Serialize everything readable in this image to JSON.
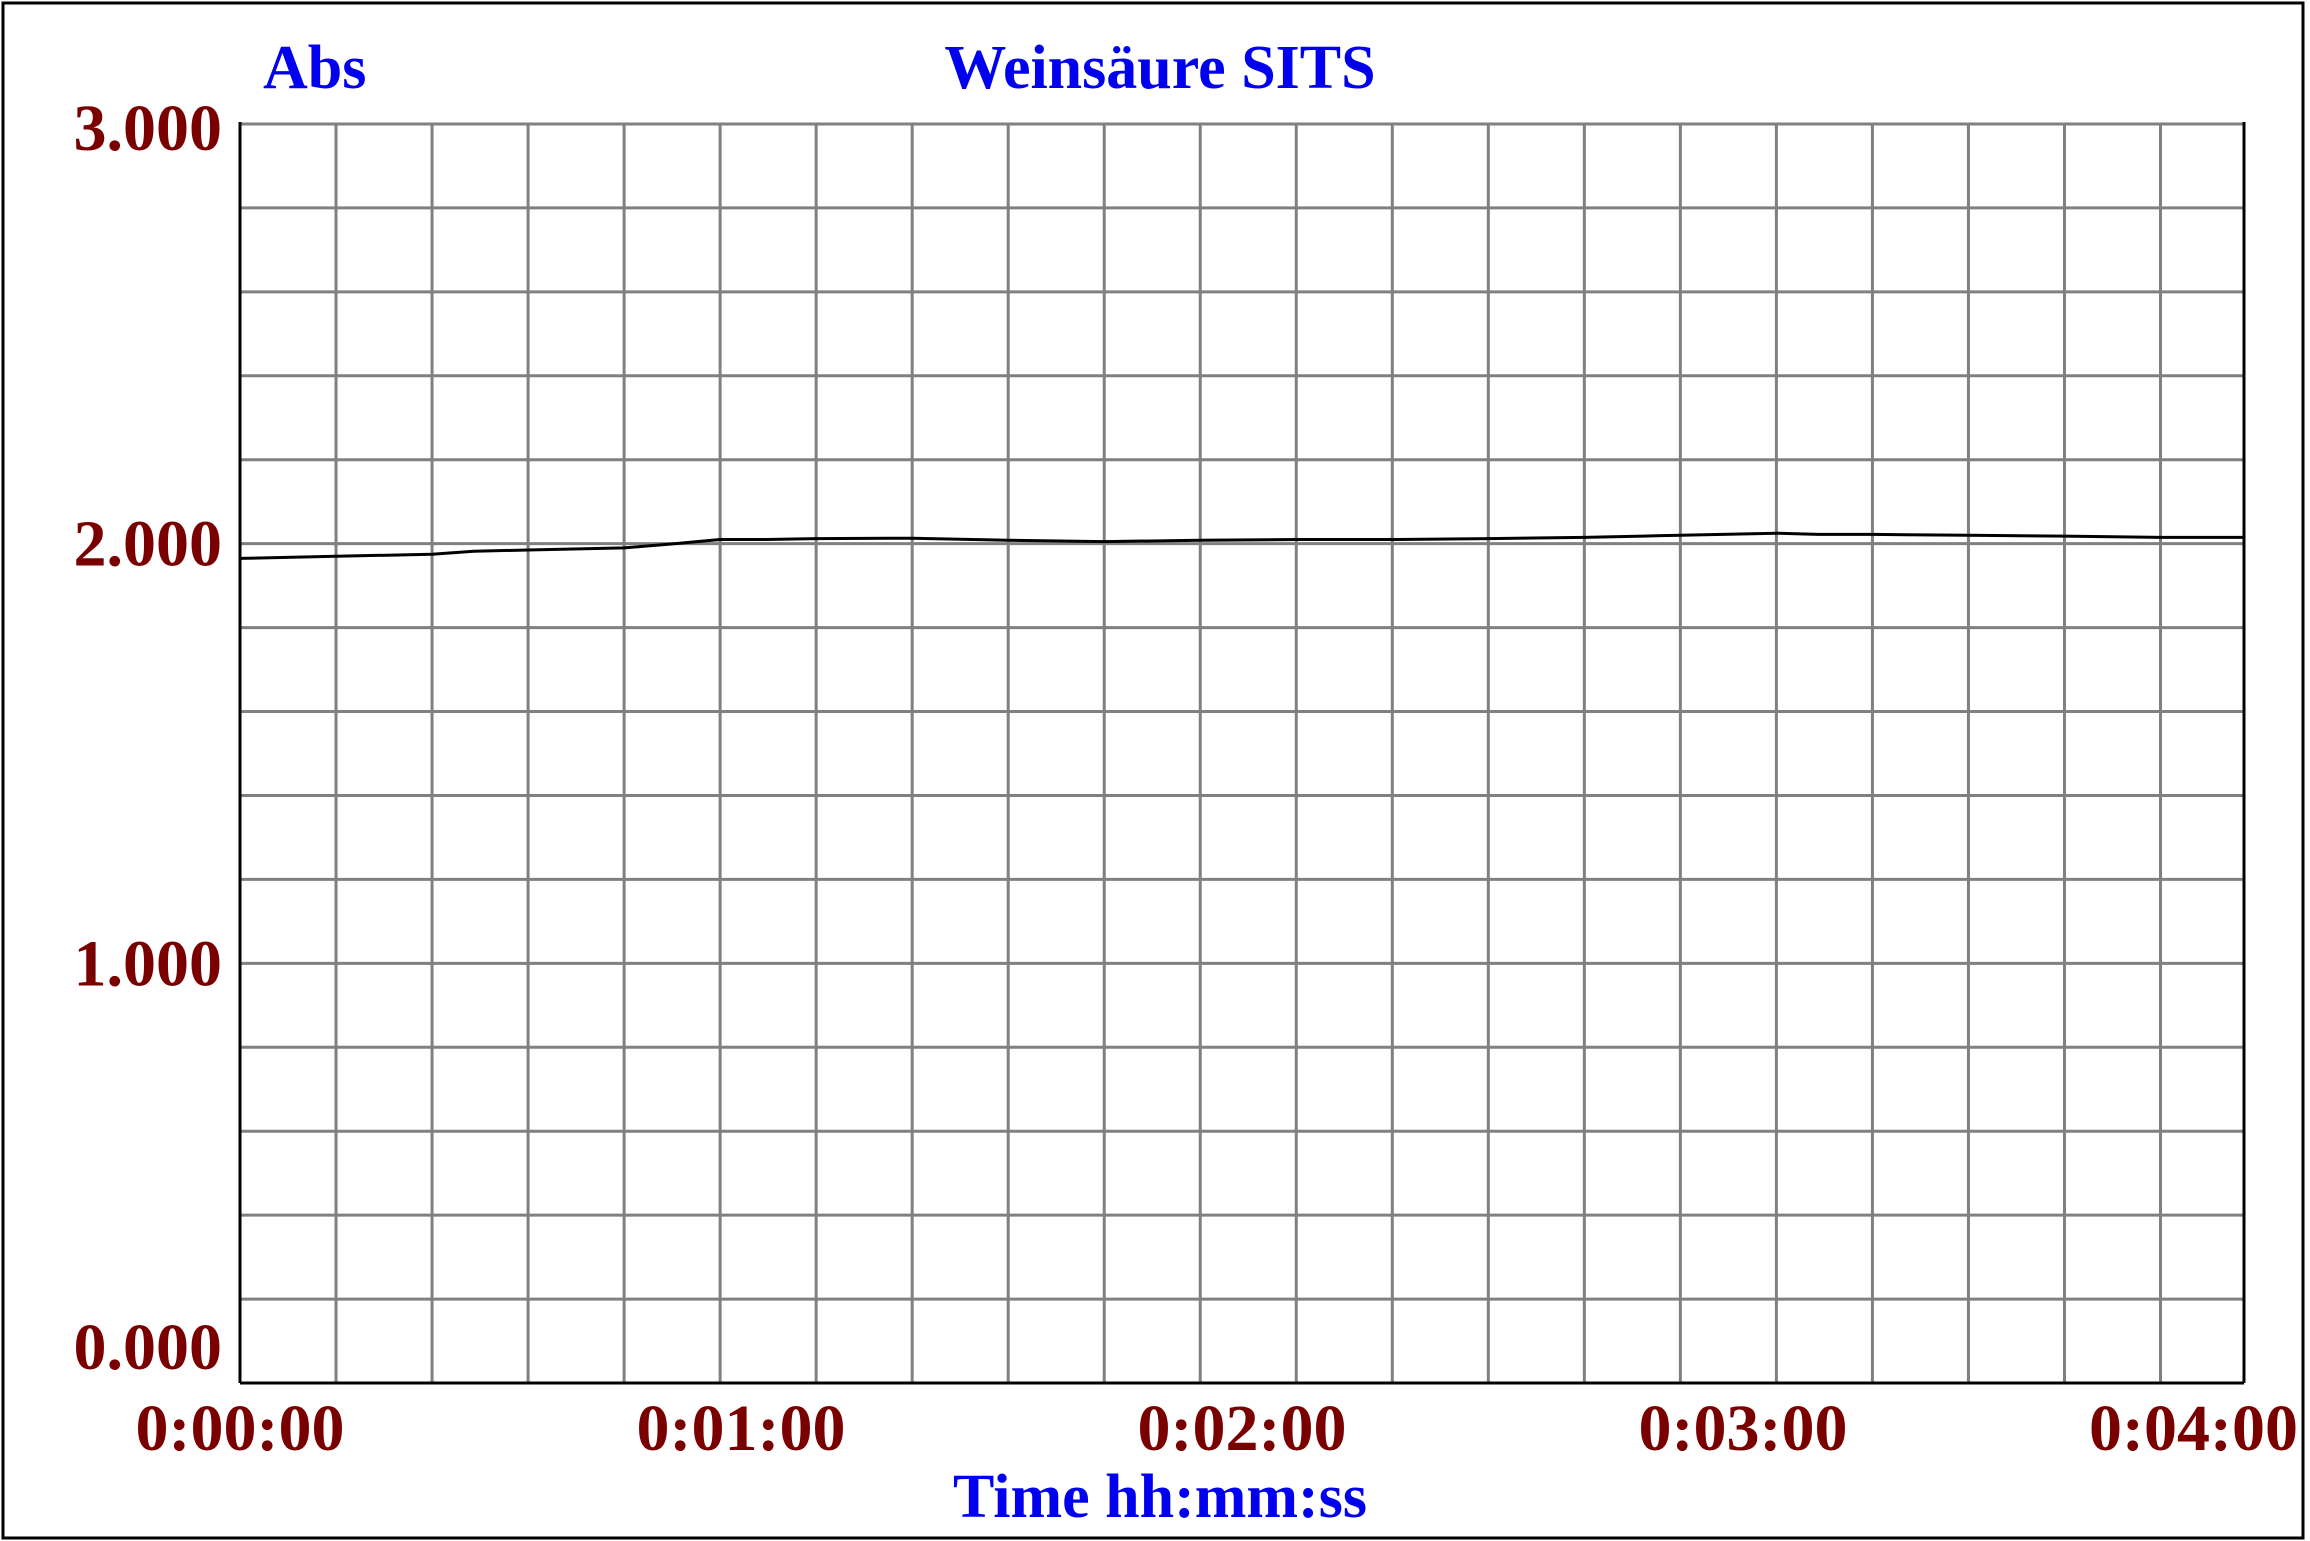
{
  "chart_data": {
    "type": "line",
    "title": "Weinsäure SITS",
    "ylabel": "Abs",
    "xlabel": "Time hh:mm:ss",
    "xlim": [
      0,
      240
    ],
    "ylim": [
      0,
      3
    ],
    "x_tick_values": [
      0,
      60,
      120,
      180,
      240
    ],
    "x_tick_labels": [
      "0:00:00",
      "0:01:00",
      "0:02:00",
      "0:03:00",
      "0:04:00"
    ],
    "y_tick_values": [
      0,
      1,
      2,
      3
    ],
    "y_tick_labels": [
      "0.000",
      "1.000",
      "2.000",
      "3.000"
    ],
    "grid": true,
    "x_grid_step": 11.5,
    "y_grid_step": 0.2,
    "colors": {
      "title": "#0000ee",
      "axis_label": "#0000ee",
      "tick_label": "#7a0000",
      "grid": "#808080",
      "line": "#000000",
      "frame": "#000000"
    },
    "series": [
      {
        "x": [
          0,
          11.5,
          23,
          28,
          34.5,
          46,
          52,
          57.5,
          63,
          69,
          80.5,
          92,
          103.5,
          115,
          126.5,
          138,
          149.5,
          161,
          168,
          172.5,
          184,
          189,
          195.5,
          207,
          218.5,
          230,
          240
        ],
        "y": [
          1.965,
          1.97,
          1.975,
          1.982,
          1.985,
          1.99,
          2.0,
          2.01,
          2.01,
          2.012,
          2.013,
          2.008,
          2.005,
          2.008,
          2.01,
          2.01,
          2.012,
          2.015,
          2.018,
          2.02,
          2.025,
          2.022,
          2.022,
          2.02,
          2.018,
          2.015,
          2.015
        ]
      }
    ]
  }
}
